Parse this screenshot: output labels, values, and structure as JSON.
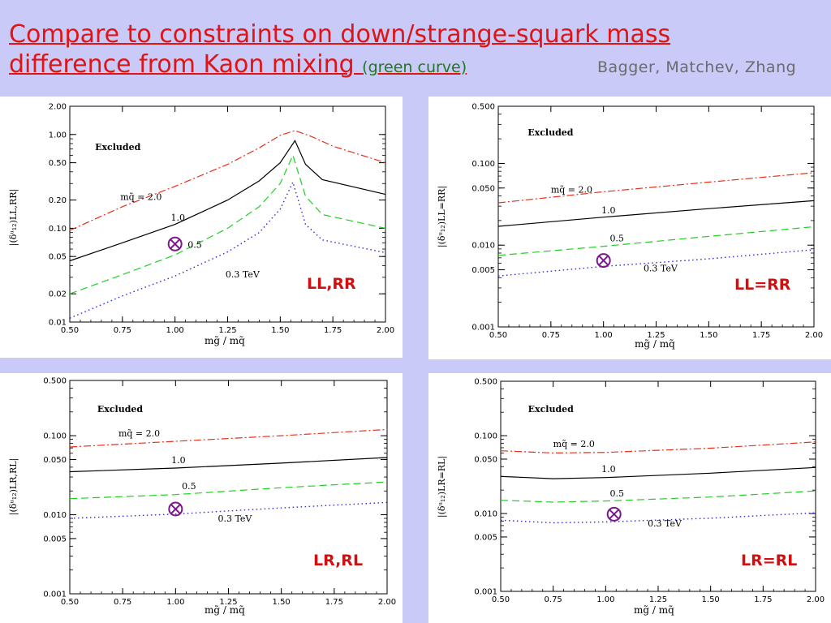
{
  "slide": {
    "title_line1": "Compare to constraints on down/strange-squark mass",
    "title_line2": "difference from Kaon mixing ",
    "title_note": "(green curve)",
    "credit": "Bagger, Matchev, Zhang"
  },
  "colors": {
    "background": "#c9caf8",
    "title": "#e01414",
    "note": "#1f7a1f",
    "credit": "#6b6b6b",
    "panel_label": "#d01010",
    "marker": "#7a1a8a",
    "series": {
      "2.0": "#e8301a",
      "1.0": "#000000",
      "0.5": "#20d020",
      "0.3 TeV": "#2b2bd8"
    }
  },
  "chart_data": [
    {
      "id": "ll-rr",
      "type": "line",
      "panel_label": "LL,RR",
      "xlabel": "mg̃ / mq̃",
      "ylabel": "|(δᵘ₁₂)LL,RR|",
      "xlim": [
        0.5,
        2.0
      ],
      "ylim": [
        0.01,
        2.0
      ],
      "yscale": "log",
      "x_ticks": [
        "0.50",
        "0.75",
        "1.00",
        "1.25",
        "1.50",
        "1.75",
        "2.00"
      ],
      "y_ticks": [
        {
          "v": 2.0,
          "label": "2.00"
        },
        {
          "v": 1.0,
          "label": "1.00"
        },
        {
          "v": 0.5,
          "label": "0.50"
        },
        {
          "v": 0.2,
          "label": "0.20"
        },
        {
          "v": 0.1,
          "label": "0.10"
        },
        {
          "v": 0.05,
          "label": "0.05"
        },
        {
          "v": 0.02,
          "label": "0.02"
        },
        {
          "v": 0.01,
          "label": "0.01"
        }
      ],
      "excluded_text": "Excluded",
      "series": [
        {
          "name": "2.0",
          "label": "mq̃ = 2.0",
          "style": "dashdot",
          "x": [
            0.5,
            0.75,
            1.0,
            1.25,
            1.4,
            1.5,
            1.57,
            1.65,
            1.75,
            2.0
          ],
          "y": [
            0.095,
            0.17,
            0.28,
            0.48,
            0.72,
            0.98,
            1.1,
            0.95,
            0.75,
            0.5
          ]
        },
        {
          "name": "1.0",
          "label": "1.0",
          "style": "solid",
          "x": [
            0.5,
            0.75,
            1.0,
            1.25,
            1.4,
            1.5,
            1.57,
            1.62,
            1.7,
            2.0
          ],
          "y": [
            0.045,
            0.07,
            0.11,
            0.2,
            0.32,
            0.5,
            0.86,
            0.48,
            0.33,
            0.23
          ]
        },
        {
          "name": "0.5",
          "label": "0.5",
          "style": "dashed",
          "x": [
            0.5,
            0.75,
            1.0,
            1.25,
            1.4,
            1.5,
            1.56,
            1.62,
            1.7,
            2.0
          ],
          "y": [
            0.02,
            0.032,
            0.052,
            0.1,
            0.17,
            0.3,
            0.6,
            0.22,
            0.14,
            0.1
          ]
        },
        {
          "name": "0.3 TeV",
          "label": "0.3 TeV",
          "style": "dotted",
          "x": [
            0.5,
            0.75,
            1.0,
            1.25,
            1.4,
            1.5,
            1.56,
            1.62,
            1.7,
            2.0
          ],
          "y": [
            0.011,
            0.019,
            0.031,
            0.056,
            0.09,
            0.16,
            0.31,
            0.11,
            0.075,
            0.055
          ]
        }
      ],
      "marker": {
        "x": 1.0,
        "y": 0.068
      }
    },
    {
      "id": "ll-eq-rr",
      "type": "line",
      "panel_label": "LL=RR",
      "xlabel": "mg̃ / mq̃",
      "ylabel": "|(δᵘ₁₂)LL=RR|",
      "xlim": [
        0.5,
        2.0
      ],
      "ylim": [
        0.001,
        0.5
      ],
      "yscale": "log",
      "x_ticks": [
        "0.50",
        "0.75",
        "1.00",
        "1.25",
        "1.50",
        "1.75",
        "2.00"
      ],
      "y_ticks": [
        {
          "v": 0.5,
          "label": "0.500"
        },
        {
          "v": 0.1,
          "label": "0.100"
        },
        {
          "v": 0.05,
          "label": "0.050"
        },
        {
          "v": 0.01,
          "label": "0.010"
        },
        {
          "v": 0.005,
          "label": "0.005"
        },
        {
          "v": 0.001,
          "label": "0.001"
        }
      ],
      "excluded_text": "Excluded",
      "series": [
        {
          "name": "2.0",
          "label": "mq̃ = 2.0",
          "style": "dashdot",
          "x": [
            0.5,
            1.0,
            1.5,
            2.0
          ],
          "y": [
            0.033,
            0.045,
            0.059,
            0.077
          ]
        },
        {
          "name": "1.0",
          "label": "1.0",
          "style": "solid",
          "x": [
            0.5,
            1.0,
            1.5,
            2.0
          ],
          "y": [
            0.017,
            0.022,
            0.028,
            0.035
          ]
        },
        {
          "name": "0.5",
          "label": "0.5",
          "style": "dashed",
          "x": [
            0.5,
            1.0,
            1.5,
            2.0
          ],
          "y": [
            0.0075,
            0.0097,
            0.0128,
            0.0168
          ]
        },
        {
          "name": "0.3 TeV",
          "label": "0.3 TeV",
          "style": "dotted",
          "x": [
            0.5,
            1.0,
            1.5,
            2.0
          ],
          "y": [
            0.0042,
            0.0055,
            0.0068,
            0.0088
          ]
        }
      ],
      "marker": {
        "x": 1.0,
        "y": 0.0065
      }
    },
    {
      "id": "lr-rl",
      "type": "line",
      "panel_label": "LR,RL",
      "xlabel": "mg̃ / mq̃",
      "ylabel": "|(δᵘ₁₂)LR,RL|",
      "xlim": [
        0.5,
        2.0
      ],
      "ylim": [
        0.001,
        0.5
      ],
      "yscale": "log",
      "x_ticks": [
        "0.50",
        "0.75",
        "1.00",
        "1.25",
        "1.50",
        "1.75",
        "2.00"
      ],
      "y_ticks": [
        {
          "v": 0.5,
          "label": "0.500"
        },
        {
          "v": 0.1,
          "label": "0.100"
        },
        {
          "v": 0.05,
          "label": "0.050"
        },
        {
          "v": 0.01,
          "label": "0.010"
        },
        {
          "v": 0.005,
          "label": "0.005"
        },
        {
          "v": 0.001,
          "label": "0.001"
        }
      ],
      "excluded_text": "Excluded",
      "series": [
        {
          "name": "2.0",
          "label": "mq̃ = 2.0",
          "style": "dashdot",
          "x": [
            0.5,
            1.0,
            1.5,
            2.0
          ],
          "y": [
            0.072,
            0.085,
            0.1,
            0.12
          ]
        },
        {
          "name": "1.0",
          "label": "1.0",
          "style": "solid",
          "x": [
            0.5,
            1.0,
            1.5,
            2.0
          ],
          "y": [
            0.035,
            0.039,
            0.045,
            0.053
          ]
        },
        {
          "name": "0.5",
          "label": "0.5",
          "style": "dashed",
          "x": [
            0.5,
            1.0,
            1.5,
            2.0
          ],
          "y": [
            0.016,
            0.018,
            0.022,
            0.026
          ]
        },
        {
          "name": "0.3 TeV",
          "label": "0.3 TeV",
          "style": "dotted",
          "x": [
            0.5,
            1.0,
            1.5,
            2.0
          ],
          "y": [
            0.009,
            0.0102,
            0.0122,
            0.0143
          ]
        }
      ],
      "marker": {
        "x": 1.0,
        "y": 0.0118
      }
    },
    {
      "id": "lr-eq-rl",
      "type": "line",
      "panel_label": "LR=RL",
      "xlabel": "mg̃ / mq̃",
      "ylabel": "|(δᵘ₁₂)LR=RL|",
      "xlim": [
        0.5,
        2.0
      ],
      "ylim": [
        0.001,
        0.5
      ],
      "yscale": "log",
      "x_ticks": [
        "0.50",
        "0.75",
        "1.00",
        "1.25",
        "1.50",
        "1.75",
        "2.00"
      ],
      "y_ticks": [
        {
          "v": 0.5,
          "label": "0.500"
        },
        {
          "v": 0.1,
          "label": "0.100"
        },
        {
          "v": 0.05,
          "label": "0.050"
        },
        {
          "v": 0.01,
          "label": "0.010"
        },
        {
          "v": 0.005,
          "label": "0.005"
        },
        {
          "v": 0.001,
          "label": "0.001"
        }
      ],
      "excluded_text": "Excluded",
      "series": [
        {
          "name": "2.0",
          "label": "mq̃ = 2.0",
          "style": "dashdot",
          "x": [
            0.5,
            0.75,
            1.0,
            1.5,
            2.0
          ],
          "y": [
            0.064,
            0.06,
            0.061,
            0.069,
            0.083
          ]
        },
        {
          "name": "1.0",
          "label": "1.0",
          "style": "solid",
          "x": [
            0.5,
            0.75,
            1.0,
            1.5,
            2.0
          ],
          "y": [
            0.03,
            0.028,
            0.029,
            0.033,
            0.039
          ]
        },
        {
          "name": "0.5",
          "label": "0.5",
          "style": "dashed",
          "x": [
            0.5,
            0.75,
            1.0,
            1.5,
            2.0
          ],
          "y": [
            0.0148,
            0.014,
            0.0145,
            0.0163,
            0.0195
          ]
        },
        {
          "name": "0.3 TeV",
          "label": "0.3 TeV",
          "style": "dotted",
          "x": [
            0.5,
            0.75,
            1.0,
            1.5,
            2.0
          ],
          "y": [
            0.0082,
            0.0076,
            0.0078,
            0.0087,
            0.0102
          ]
        }
      ],
      "marker": {
        "x": 1.04,
        "y": 0.0098
      }
    }
  ]
}
